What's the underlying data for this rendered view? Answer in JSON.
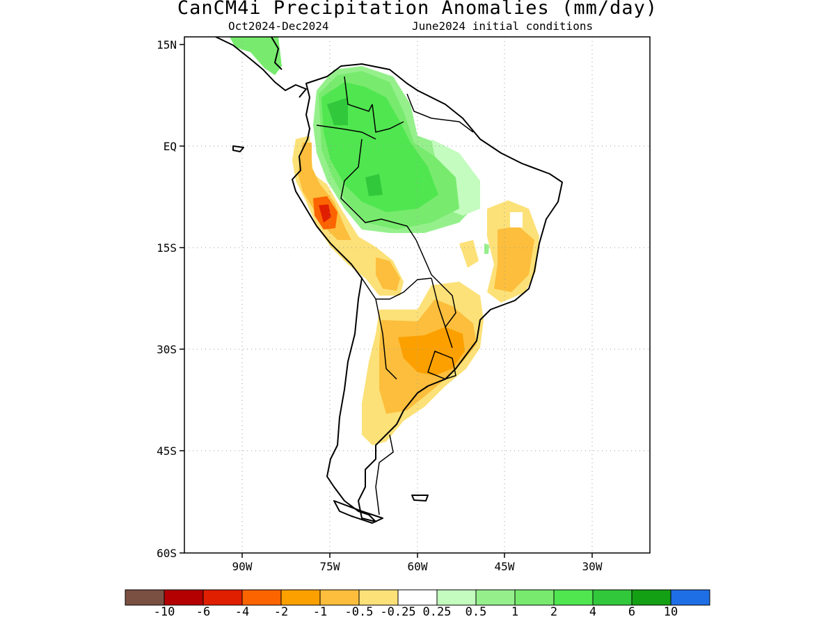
{
  "title": "CanCM4i Precipitation Anomalies (mm/day)",
  "subtitle_period": "Oct2024-Dec2024",
  "subtitle_init": "June2024 initial conditions",
  "lat_labels": [
    "15N",
    "EQ",
    "15S",
    "30S",
    "45S",
    "60S"
  ],
  "lon_labels": [
    "90W",
    "75W",
    "60W",
    "45W",
    "30W"
  ],
  "colorbar": {
    "colors": [
      "#7a5042",
      "#b40000",
      "#e01e00",
      "#fc6400",
      "#fca000",
      "#fcbe3c",
      "#fce178",
      "#ffffff",
      "#c3fcbe",
      "#95f08c",
      "#78eb6e",
      "#50e650",
      "#32c83c",
      "#14a014",
      "#1e6ee6"
    ],
    "labels": [
      "-10",
      "-6",
      "-4",
      "-2",
      "-1",
      "-0.5",
      "-0.25",
      "0.25",
      "0.5",
      "1",
      "2",
      "4",
      "6",
      "10"
    ]
  }
}
